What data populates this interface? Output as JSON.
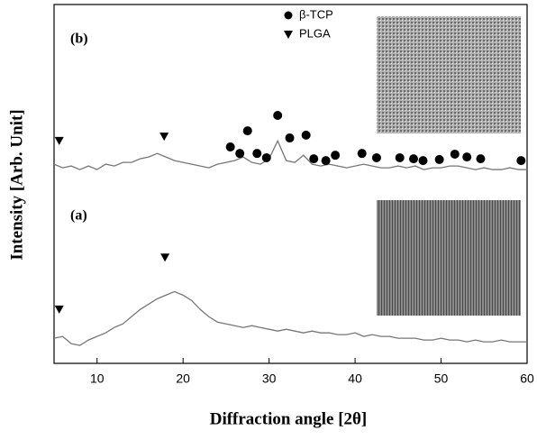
{
  "chart_data": {
    "type": "line",
    "xlabel": "Diffraction angle [2θ]",
    "ylabel": "Intensity [Arb. Unit]",
    "xlim": [
      5,
      60
    ],
    "xticks": [
      10,
      20,
      30,
      40,
      50,
      60
    ],
    "ylim": [
      0,
      100
    ],
    "x": [
      5,
      6,
      7,
      8,
      9,
      10,
      11,
      12,
      13,
      14,
      15,
      16,
      17,
      18,
      19,
      20,
      21,
      22,
      23,
      24,
      25,
      26,
      27,
      28,
      29,
      30,
      31,
      32,
      33,
      34,
      35,
      36,
      37,
      38,
      39,
      40,
      41,
      42,
      43,
      44,
      45,
      46,
      47,
      48,
      49,
      50,
      51,
      52,
      53,
      54,
      55,
      56,
      57,
      58,
      59,
      60
    ],
    "series": [
      {
        "name": "(a)",
        "color": "#777777",
        "values": [
          7,
          7.5,
          5.5,
          5,
          6.5,
          7.5,
          8.5,
          10,
          11,
          13,
          15,
          16.5,
          18,
          19,
          20,
          19,
          17.5,
          15,
          13,
          11.5,
          11,
          10.5,
          10,
          10.5,
          10,
          9.5,
          9,
          9.5,
          9,
          8.5,
          9,
          8.5,
          8.5,
          8,
          8,
          8.5,
          7.5,
          8,
          7.5,
          7.5,
          7,
          7,
          7,
          6.5,
          6.5,
          7,
          6.5,
          6.5,
          6,
          6.5,
          6,
          6,
          6.5,
          6,
          6,
          6
        ]
      },
      {
        "name": "(b)",
        "color": "#777777",
        "values": [
          55.5,
          54.5,
          55,
          54,
          55,
          54,
          55.5,
          55,
          56,
          56,
          57,
          57.5,
          58.5,
          57.5,
          56.5,
          56,
          55.5,
          55,
          54.5,
          55.5,
          56,
          56.5,
          57.5,
          56,
          55.5,
          57,
          62,
          56.5,
          56,
          58,
          55.5,
          55,
          55.5,
          55,
          54.5,
          55,
          55.5,
          55,
          54.5,
          54.5,
          55,
          54.5,
          55,
          54,
          54.5,
          54.5,
          55,
          55,
          54.5,
          54,
          54.5,
          54,
          54,
          54.5,
          54,
          54
        ]
      }
    ],
    "markers": [
      {
        "name": "β-TCP",
        "shape": "circle",
        "color": "#000000",
        "x": [
          25.5,
          26.6,
          27.5,
          28.6,
          29.7,
          31.0,
          32.4,
          34.3,
          35.2,
          36.6,
          37.7,
          40.8,
          42.5,
          45.2,
          46.8,
          47.9,
          49.8,
          51.6,
          53.0,
          54.6,
          59.3
        ],
        "y": [
          60.3,
          58.5,
          64.8,
          58.5,
          57.3,
          69.1,
          62.8,
          63.6,
          57.0,
          56.5,
          58.0,
          58.5,
          57.3,
          57.3,
          57.0,
          56.5,
          56.8,
          58.3,
          57.5,
          57.0,
          56.5
        ]
      },
      {
        "name": "PLGA",
        "shape": "triangle",
        "color": "#000000",
        "x": [
          5.6,
          17.8,
          5.6,
          17.9
        ],
        "y": [
          62.1,
          63.3,
          15.1,
          29.6
        ]
      }
    ]
  }
}
